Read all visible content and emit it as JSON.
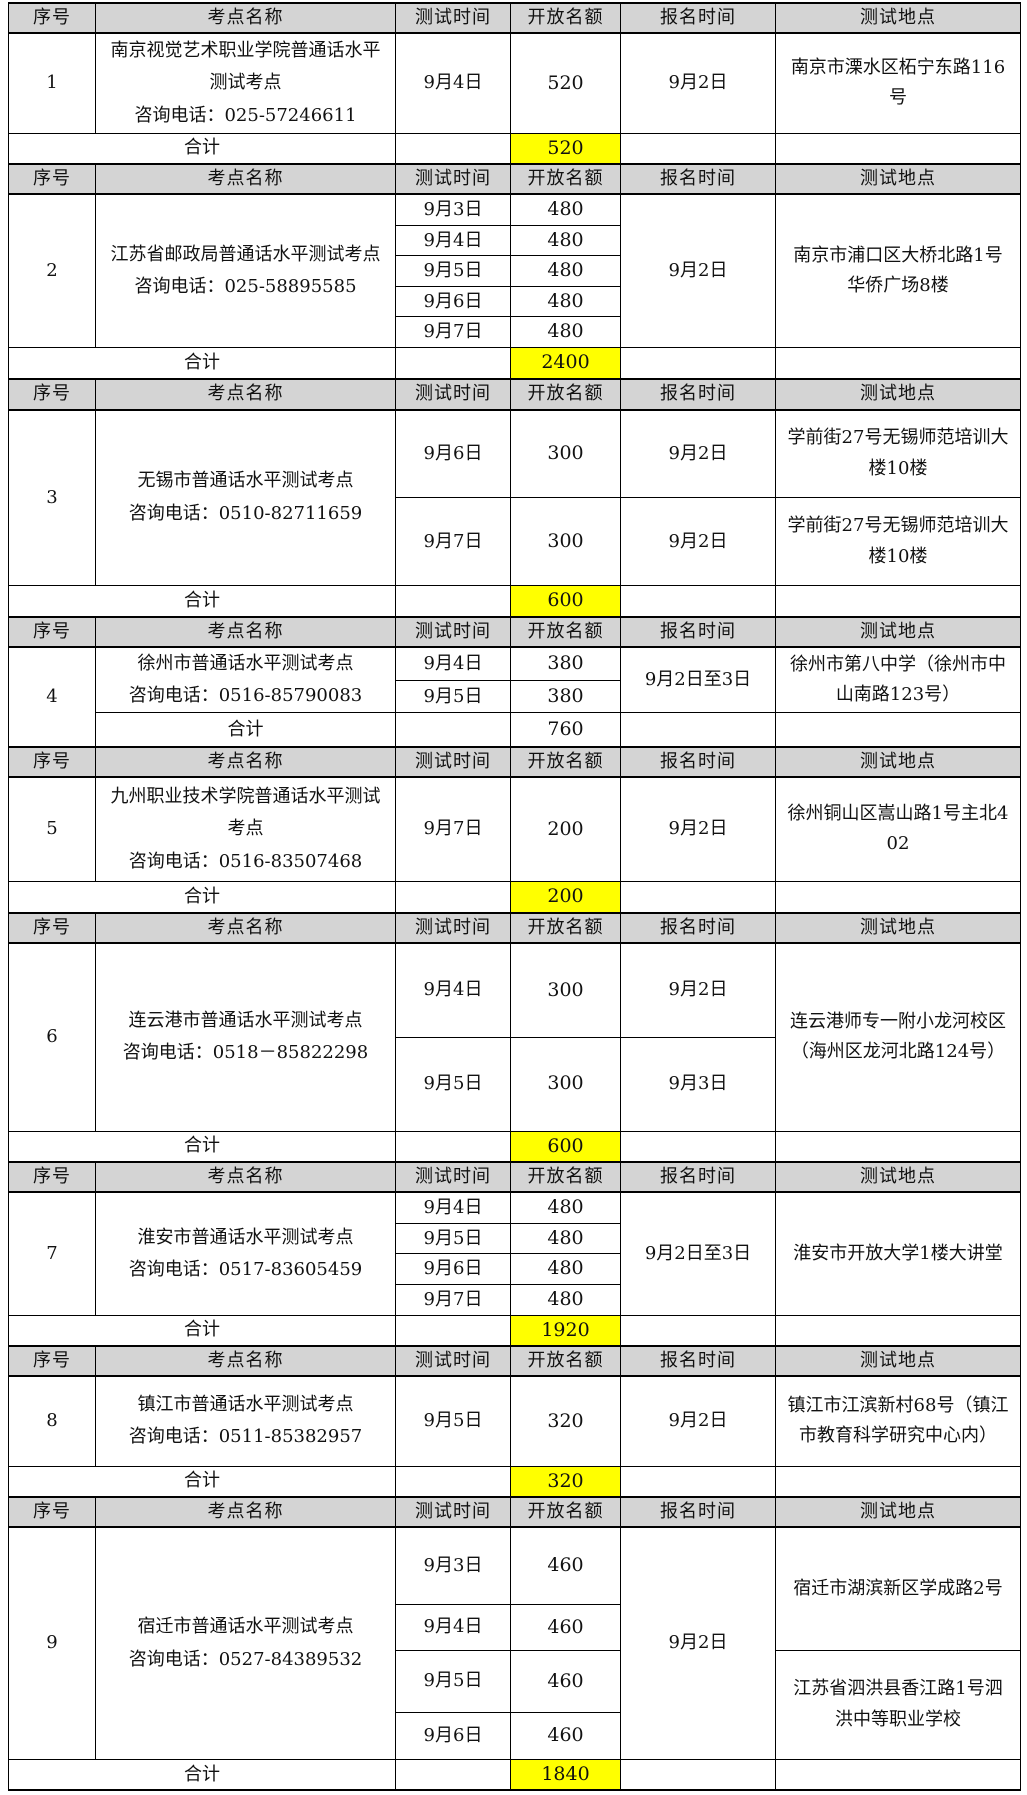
{
  "colors": {
    "header_bg": "#d4d4d4",
    "highlight": "#ffff00",
    "border": "#000000"
  },
  "table": {
    "columns": [
      "序号",
      "考点名称",
      "测试时间",
      "开放名额",
      "报名时间",
      "测试地点"
    ],
    "total_label": "合计",
    "sections": [
      {
        "no": "1",
        "site": "南京视觉艺术职业学院普通话水平测试考点",
        "phone": "咨询电话：025-57246611",
        "tests": [
          {
            "date": "9月4日",
            "quota": "520"
          }
        ],
        "signups": [
          {
            "text": "9月2日",
            "rows": 1
          }
        ],
        "venues": [
          {
            "text": "南京市溧水区柘宁东路116号",
            "rows": 1
          }
        ],
        "total": "520",
        "total_highlighted": true,
        "total_inset": false
      },
      {
        "no": "2",
        "site": "江苏省邮政局普通话水平测试考点",
        "phone": "咨询电话：025-58895585",
        "tests": [
          {
            "date": "9月3日",
            "quota": "480"
          },
          {
            "date": "9月4日",
            "quota": "480"
          },
          {
            "date": "9月5日",
            "quota": "480"
          },
          {
            "date": "9月6日",
            "quota": "480"
          },
          {
            "date": "9月7日",
            "quota": "480"
          }
        ],
        "signups": [
          {
            "text": "9月2日",
            "rows": 5
          }
        ],
        "venues": [
          {
            "text": "南京市浦口区大桥北路1号华侨广场8楼",
            "rows": 5
          }
        ],
        "total": "2400",
        "total_highlighted": true,
        "total_inset": false
      },
      {
        "no": "3",
        "site": "无锡市普通话水平测试考点",
        "phone": "咨询电话：0510-82711659",
        "tests": [
          {
            "date": "9月6日",
            "quota": "300"
          },
          {
            "date": "9月7日",
            "quota": "300"
          }
        ],
        "signups": [
          {
            "text": "9月2日",
            "rows": 1
          },
          {
            "text": "9月2日",
            "rows": 1
          }
        ],
        "venues": [
          {
            "text": "学前街27号无锡师范培训大楼10楼",
            "rows": 1
          },
          {
            "text": "学前街27号无锡师范培训大楼10楼",
            "rows": 1
          }
        ],
        "total": "600",
        "total_highlighted": true,
        "total_inset": false
      },
      {
        "no": "4",
        "site": "徐州市普通话水平测试考点",
        "phone": "咨询电话：0516-85790083",
        "tests": [
          {
            "date": "9月4日",
            "quota": "380"
          },
          {
            "date": "9月5日",
            "quota": "380"
          }
        ],
        "signups": [
          {
            "text": "9月2日至3日",
            "rows": 2
          }
        ],
        "venues": [
          {
            "text": "徐州市第八中学（徐州市中山南路123号）",
            "rows": 2
          }
        ],
        "total": "760",
        "total_highlighted": false,
        "total_inset": true
      },
      {
        "no": "5",
        "site": "九州职业技术学院普通话水平测试考点",
        "phone": "咨询电话：0516-83507468",
        "tests": [
          {
            "date": "9月7日",
            "quota": "200"
          }
        ],
        "signups": [
          {
            "text": "9月2日",
            "rows": 1
          }
        ],
        "venues": [
          {
            "text": "徐州铜山区嵩山路1号主北402",
            "rows": 1
          }
        ],
        "total": "200",
        "total_highlighted": true,
        "total_inset": false
      },
      {
        "no": "6",
        "site": "连云港市普通话水平测试考点",
        "phone": "咨询电话：0518－85822298",
        "tests": [
          {
            "date": "9月4日",
            "quota": "300"
          },
          {
            "date": "9月5日",
            "quota": "300"
          }
        ],
        "signups": [
          {
            "text": "9月2日",
            "rows": 1
          },
          {
            "text": "9月3日",
            "rows": 1
          }
        ],
        "venues": [
          {
            "text": "连云港师专一附小龙河校区（海州区龙河北路124号）",
            "rows": 2
          }
        ],
        "total": "600",
        "total_highlighted": true,
        "total_inset": false
      },
      {
        "no": "7",
        "site": "淮安市普通话水平测试考点",
        "phone": "咨询电话：0517-83605459",
        "tests": [
          {
            "date": "9月4日",
            "quota": "480"
          },
          {
            "date": "9月5日",
            "quota": "480"
          },
          {
            "date": "9月6日",
            "quota": "480"
          },
          {
            "date": "9月7日",
            "quota": "480"
          }
        ],
        "signups": [
          {
            "text": "9月2日至3日",
            "rows": 4
          }
        ],
        "venues": [
          {
            "text": "淮安市开放大学1楼大讲堂",
            "rows": 4
          }
        ],
        "total": "1920",
        "total_highlighted": true,
        "total_inset": false
      },
      {
        "no": "8",
        "site": "镇江市普通话水平测试考点",
        "phone": "咨询电话：0511-85382957",
        "tests": [
          {
            "date": "9月5日",
            "quota": "320"
          }
        ],
        "signups": [
          {
            "text": "9月2日",
            "rows": 1
          }
        ],
        "venues": [
          {
            "text": "镇江市江滨新村68号（镇江市教育科学研究中心内）",
            "rows": 1
          }
        ],
        "total": "320",
        "total_highlighted": true,
        "total_inset": false
      },
      {
        "no": "9",
        "site": "宿迁市普通话水平测试考点",
        "phone": "咨询电话：0527-84389532",
        "tests": [
          {
            "date": "9月3日",
            "quota": "460"
          },
          {
            "date": "9月4日",
            "quota": "460"
          },
          {
            "date": "9月5日",
            "quota": "460"
          },
          {
            "date": "9月6日",
            "quota": "460"
          }
        ],
        "signups": [
          {
            "text": "9月2日",
            "rows": 4
          }
        ],
        "venues": [
          {
            "text": "宿迁市湖滨新区学成路2号",
            "rows": 2
          },
          {
            "text": "江苏省泗洪县香江路1号泗洪中等职业学校",
            "rows": 2
          }
        ],
        "total": "1840",
        "total_highlighted": true,
        "total_inset": false
      }
    ]
  }
}
